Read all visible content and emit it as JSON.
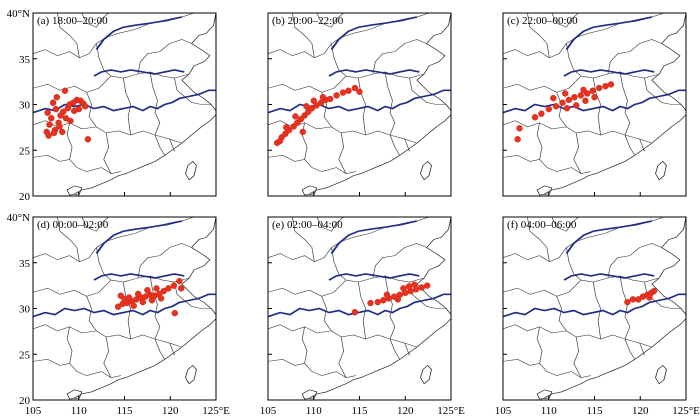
{
  "figure": {
    "axis": {
      "lat_ticks": [
        "20",
        "25",
        "30",
        "35",
        "40°N"
      ],
      "lon_ticks": [
        "105",
        "110",
        "115",
        "120",
        "125°E"
      ],
      "lon_range": [
        105,
        125
      ],
      "lat_range": [
        20,
        40
      ]
    },
    "colors": {
      "points": "#e8321f",
      "rivers": "#1f2d86",
      "boundaries": "#444444"
    },
    "panels": [
      {
        "id": "a",
        "label": "(a) 18:00–20:00",
        "points": [
          [
            108.5,
            31.5
          ],
          [
            107.2,
            30.2
          ],
          [
            107.5,
            29.5
          ],
          [
            107.0,
            28.5
          ],
          [
            106.8,
            27.8
          ],
          [
            106.5,
            27.0
          ],
          [
            106.7,
            26.6
          ],
          [
            107.4,
            27.2
          ],
          [
            107.8,
            28.0
          ],
          [
            108.0,
            28.8
          ],
          [
            108.3,
            29.2
          ],
          [
            108.8,
            29.6
          ],
          [
            109.0,
            30.0
          ],
          [
            109.4,
            30.2
          ],
          [
            109.8,
            30.5
          ],
          [
            110.2,
            30.4
          ],
          [
            110.5,
            30.1
          ],
          [
            109.5,
            29.3
          ],
          [
            108.6,
            28.5
          ],
          [
            107.9,
            27.6
          ],
          [
            107.3,
            26.9
          ],
          [
            108.2,
            27.0
          ],
          [
            109.1,
            28.2
          ],
          [
            110.0,
            29.5
          ],
          [
            110.7,
            29.8
          ],
          [
            111.0,
            26.2
          ],
          [
            106.6,
            29.1
          ],
          [
            107.6,
            30.8
          ]
        ]
      },
      {
        "id": "b",
        "label": "(b) 20:00–22:00",
        "points": [
          [
            106.0,
            25.8
          ],
          [
            106.5,
            26.4
          ],
          [
            106.9,
            26.8
          ],
          [
            107.3,
            27.2
          ],
          [
            107.8,
            27.6
          ],
          [
            108.2,
            28.0
          ],
          [
            108.6,
            28.4
          ],
          [
            109.0,
            28.8
          ],
          [
            109.4,
            29.2
          ],
          [
            109.8,
            29.6
          ],
          [
            110.3,
            29.9
          ],
          [
            110.8,
            30.2
          ],
          [
            111.3,
            30.5
          ],
          [
            111.8,
            30.6
          ],
          [
            112.5,
            31.0
          ],
          [
            113.2,
            31.3
          ],
          [
            113.8,
            31.5
          ],
          [
            114.5,
            31.8
          ],
          [
            115.0,
            31.4
          ],
          [
            106.3,
            26.0
          ],
          [
            107.0,
            27.5
          ],
          [
            108.0,
            28.7
          ],
          [
            109.2,
            29.8
          ],
          [
            110.0,
            30.4
          ],
          [
            111.0,
            30.8
          ],
          [
            108.8,
            27.0
          ]
        ]
      },
      {
        "id": "c",
        "label": "(c) 22:00–00:00",
        "points": [
          [
            106.6,
            26.2
          ],
          [
            106.8,
            27.4
          ],
          [
            108.5,
            28.6
          ],
          [
            109.2,
            29.0
          ],
          [
            110.0,
            29.5
          ],
          [
            110.8,
            29.8
          ],
          [
            111.5,
            30.2
          ],
          [
            112.2,
            30.5
          ],
          [
            112.8,
            30.8
          ],
          [
            113.5,
            31.0
          ],
          [
            114.2,
            31.2
          ],
          [
            114.8,
            31.5
          ],
          [
            115.5,
            31.8
          ],
          [
            116.2,
            32.0
          ],
          [
            116.8,
            32.2
          ],
          [
            112.0,
            29.6
          ],
          [
            113.0,
            29.9
          ],
          [
            114.0,
            30.4
          ],
          [
            115.0,
            30.8
          ],
          [
            110.5,
            30.7
          ],
          [
            111.8,
            31.2
          ],
          [
            113.8,
            31.6
          ]
        ]
      },
      {
        "id": "d",
        "label": "(d) 00:00–02:00",
        "points": [
          [
            114.3,
            30.2
          ],
          [
            114.8,
            30.5
          ],
          [
            115.3,
            30.6
          ],
          [
            115.8,
            30.8
          ],
          [
            116.3,
            31.0
          ],
          [
            116.8,
            31.2
          ],
          [
            117.3,
            31.3
          ],
          [
            117.8,
            31.5
          ],
          [
            118.3,
            31.4
          ],
          [
            118.8,
            31.6
          ],
          [
            119.3,
            31.9
          ],
          [
            119.8,
            32.2
          ],
          [
            120.4,
            32.5
          ],
          [
            121.0,
            33.0
          ],
          [
            115.5,
            31.2
          ],
          [
            116.5,
            31.6
          ],
          [
            117.5,
            32.0
          ],
          [
            118.5,
            32.2
          ],
          [
            115.0,
            31.0
          ],
          [
            116.0,
            30.3
          ],
          [
            117.0,
            30.7
          ],
          [
            118.0,
            30.9
          ],
          [
            119.0,
            31.1
          ],
          [
            120.5,
            29.5
          ],
          [
            114.6,
            31.4
          ],
          [
            121.2,
            32.2
          ]
        ]
      },
      {
        "id": "e",
        "label": "(e) 02:00–04:00",
        "points": [
          [
            117.0,
            30.7
          ],
          [
            117.6,
            30.9
          ],
          [
            118.2,
            31.1
          ],
          [
            118.8,
            31.3
          ],
          [
            119.4,
            31.5
          ],
          [
            120.0,
            31.7
          ],
          [
            120.6,
            31.9
          ],
          [
            121.2,
            32.1
          ],
          [
            121.8,
            32.3
          ],
          [
            122.4,
            32.5
          ],
          [
            119.8,
            32.2
          ],
          [
            120.4,
            32.4
          ],
          [
            121.0,
            32.6
          ],
          [
            118.0,
            31.5
          ],
          [
            119.2,
            31.0
          ],
          [
            116.2,
            30.6
          ],
          [
            114.5,
            29.6
          ]
        ]
      },
      {
        "id": "f",
        "label": "(f) 04:00–06:00",
        "points": [
          [
            118.6,
            30.7
          ],
          [
            119.2,
            31.0
          ],
          [
            119.8,
            31.0
          ],
          [
            120.3,
            31.3
          ],
          [
            120.8,
            31.5
          ],
          [
            121.2,
            31.7
          ],
          [
            121.5,
            31.9
          ],
          [
            121.0,
            31.2
          ]
        ]
      }
    ]
  }
}
